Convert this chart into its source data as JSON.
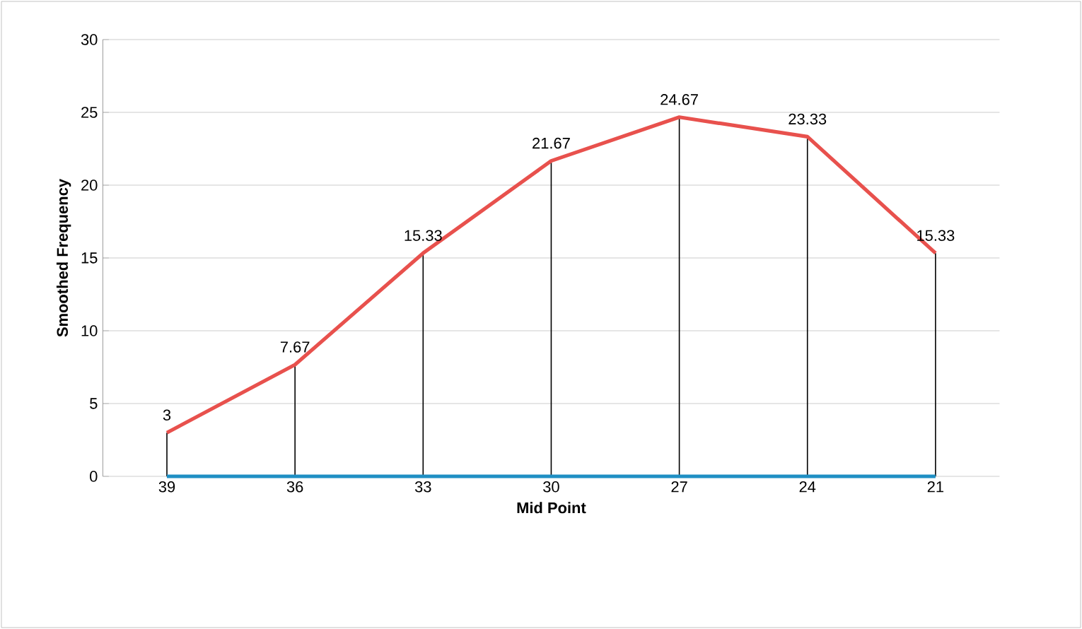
{
  "chart_data": {
    "type": "line",
    "xlabel": "Mid Point",
    "ylabel": "Smoothed Frequency",
    "categories": [
      "39",
      "36",
      "33",
      "30",
      "27",
      "24",
      "21"
    ],
    "series": [
      {
        "type": "bar",
        "color": "#000000",
        "values": [
          3,
          7.67,
          15.33,
          21.67,
          24.67,
          23.33,
          15.33
        ]
      },
      {
        "color": "#1f8fc4",
        "values": [
          0,
          0,
          0,
          0,
          0,
          0,
          0
        ]
      },
      {
        "color": "#e8514d",
        "values": [
          3,
          7.67,
          15.33,
          21.67,
          24.67,
          23.33,
          15.33
        ],
        "value_labels": [
          "3",
          "7.67",
          "15.33",
          "21.67",
          "24.67",
          "23.33",
          "15.33"
        ]
      }
    ],
    "ylim": [
      0,
      30
    ],
    "yticks": [
      0,
      5,
      10,
      15,
      20,
      25,
      30
    ],
    "grid": "y",
    "marker": "none"
  }
}
